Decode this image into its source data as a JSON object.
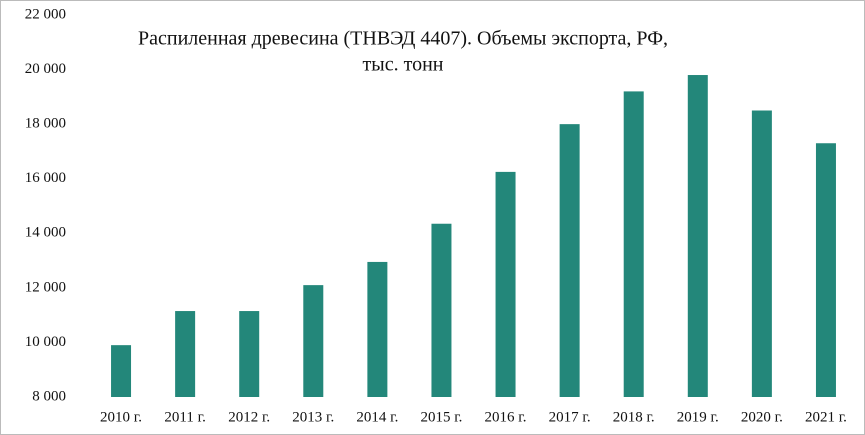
{
  "chart_data": {
    "type": "bar",
    "title_lines": [
      "Распиленная древесина (ТНВЭД 4407). Объемы экспорта, РФ,",
      "тыс. тонн"
    ],
    "categories": [
      "2010 г.",
      "2011 г.",
      "2012 г.",
      "2013 г.",
      "2014 г.",
      "2015 г.",
      "2016 г.",
      "2017 г.",
      "2018 г.",
      "2019 г.",
      "2020 г.",
      "2021 г."
    ],
    "values": [
      9900,
      11150,
      11150,
      12100,
      12950,
      14350,
      16250,
      18000,
      19200,
      19800,
      18500,
      17300
    ],
    "color": "#23877a",
    "ylim": [
      8000,
      22000
    ],
    "yticks": [
      {
        "value": 8000,
        "label": "8 000"
      },
      {
        "value": 10000,
        "label": "10 000"
      },
      {
        "value": 12000,
        "label": "12 000"
      },
      {
        "value": 14000,
        "label": "14 000"
      },
      {
        "value": 16000,
        "label": "16 000"
      },
      {
        "value": 18000,
        "label": "18 000"
      },
      {
        "value": 20000,
        "label": "20 000"
      },
      {
        "value": 22000,
        "label": "22 000"
      }
    ],
    "grid": false
  }
}
